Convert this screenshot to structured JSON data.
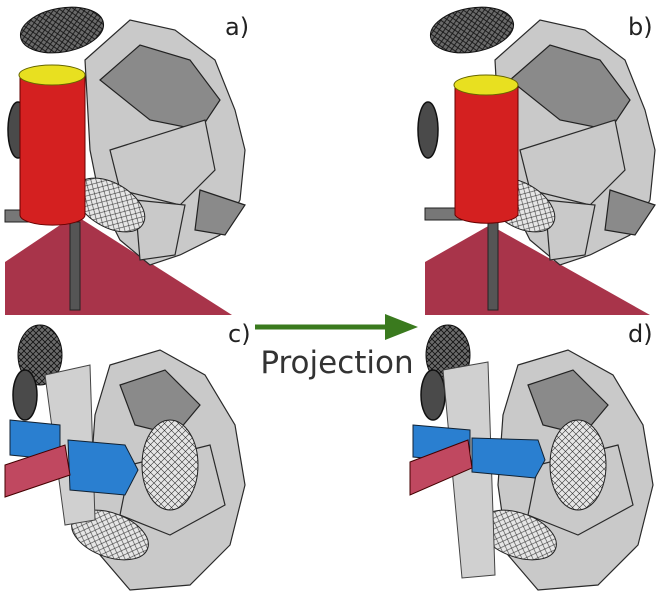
{
  "panels": [
    {
      "label": "a)"
    },
    {
      "label": "b)"
    },
    {
      "label": "c)"
    },
    {
      "label": "d)"
    }
  ],
  "arrow": {
    "label": "Projection"
  }
}
